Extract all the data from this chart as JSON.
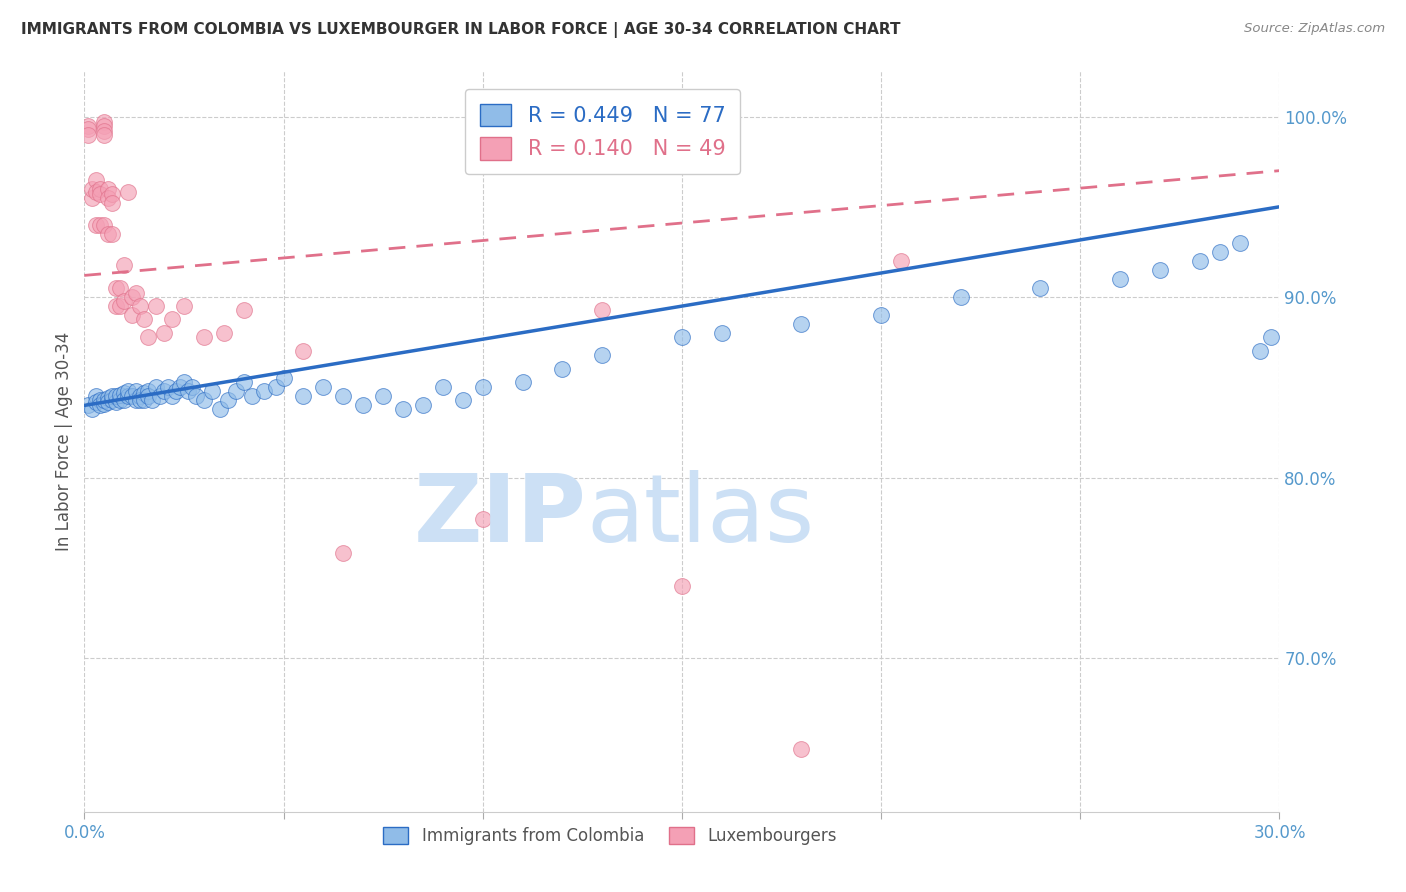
{
  "title": "IMMIGRANTS FROM COLOMBIA VS LUXEMBOURGER IN LABOR FORCE | AGE 30-34 CORRELATION CHART",
  "source": "Source: ZipAtlas.com",
  "ylabel": "In Labor Force | Age 30-34",
  "xlim": [
    0.0,
    0.3
  ],
  "ylim": [
    0.615,
    1.025
  ],
  "xticks": [
    0.0,
    0.05,
    0.1,
    0.15,
    0.2,
    0.25,
    0.3
  ],
  "xticklabels": [
    "0.0%",
    "",
    "",
    "",
    "",
    "",
    "30.0%"
  ],
  "yticks": [
    0.7,
    0.8,
    0.9,
    1.0
  ],
  "yticklabels": [
    "70.0%",
    "80.0%",
    "90.0%",
    "100.0%"
  ],
  "blue_color": "#90bce8",
  "pink_color": "#f4a0b5",
  "trend_blue_color": "#2b6cc4",
  "trend_pink_color": "#e0708a",
  "axis_label_color": "#5599cc",
  "grid_color": "#cccccc",
  "title_color": "#333333",
  "watermark_color": "#cce0f5",
  "blue_scatter_x": [
    0.001,
    0.002,
    0.003,
    0.003,
    0.004,
    0.004,
    0.005,
    0.005,
    0.006,
    0.006,
    0.007,
    0.007,
    0.008,
    0.008,
    0.009,
    0.009,
    0.01,
    0.01,
    0.011,
    0.011,
    0.012,
    0.013,
    0.013,
    0.014,
    0.014,
    0.015,
    0.015,
    0.016,
    0.016,
    0.017,
    0.018,
    0.019,
    0.02,
    0.021,
    0.022,
    0.023,
    0.024,
    0.025,
    0.026,
    0.027,
    0.028,
    0.03,
    0.032,
    0.034,
    0.036,
    0.038,
    0.04,
    0.042,
    0.045,
    0.048,
    0.05,
    0.055,
    0.06,
    0.065,
    0.07,
    0.075,
    0.08,
    0.085,
    0.09,
    0.095,
    0.1,
    0.11,
    0.12,
    0.13,
    0.15,
    0.16,
    0.18,
    0.2,
    0.22,
    0.24,
    0.26,
    0.27,
    0.28,
    0.285,
    0.29,
    0.295,
    0.298
  ],
  "blue_scatter_y": [
    0.84,
    0.838,
    0.845,
    0.842,
    0.843,
    0.84,
    0.841,
    0.843,
    0.844,
    0.842,
    0.843,
    0.845,
    0.842,
    0.845,
    0.843,
    0.846,
    0.847,
    0.843,
    0.845,
    0.848,
    0.845,
    0.843,
    0.848,
    0.845,
    0.843,
    0.847,
    0.843,
    0.848,
    0.845,
    0.843,
    0.85,
    0.845,
    0.848,
    0.85,
    0.845,
    0.848,
    0.85,
    0.853,
    0.848,
    0.85,
    0.845,
    0.843,
    0.848,
    0.838,
    0.843,
    0.848,
    0.853,
    0.845,
    0.848,
    0.85,
    0.855,
    0.845,
    0.85,
    0.845,
    0.84,
    0.845,
    0.838,
    0.84,
    0.85,
    0.843,
    0.85,
    0.853,
    0.86,
    0.868,
    0.878,
    0.88,
    0.885,
    0.89,
    0.9,
    0.905,
    0.91,
    0.915,
    0.92,
    0.925,
    0.93,
    0.87,
    0.878
  ],
  "pink_scatter_x": [
    0.001,
    0.001,
    0.001,
    0.002,
    0.002,
    0.003,
    0.003,
    0.003,
    0.004,
    0.004,
    0.004,
    0.005,
    0.005,
    0.005,
    0.005,
    0.005,
    0.006,
    0.006,
    0.006,
    0.007,
    0.007,
    0.007,
    0.008,
    0.008,
    0.009,
    0.009,
    0.01,
    0.01,
    0.011,
    0.012,
    0.012,
    0.013,
    0.014,
    0.015,
    0.016,
    0.018,
    0.02,
    0.022,
    0.025,
    0.03,
    0.035,
    0.04,
    0.055,
    0.065,
    0.1,
    0.13,
    0.15,
    0.18,
    0.205
  ],
  "pink_scatter_y": [
    0.995,
    0.993,
    0.99,
    0.955,
    0.96,
    0.965,
    0.958,
    0.94,
    0.96,
    0.957,
    0.94,
    0.997,
    0.995,
    0.992,
    0.99,
    0.94,
    0.96,
    0.955,
    0.935,
    0.957,
    0.952,
    0.935,
    0.905,
    0.895,
    0.905,
    0.895,
    0.918,
    0.898,
    0.958,
    0.9,
    0.89,
    0.902,
    0.895,
    0.888,
    0.878,
    0.895,
    0.88,
    0.888,
    0.895,
    0.878,
    0.88,
    0.893,
    0.87,
    0.758,
    0.777,
    0.893,
    0.74,
    0.65,
    0.92
  ]
}
